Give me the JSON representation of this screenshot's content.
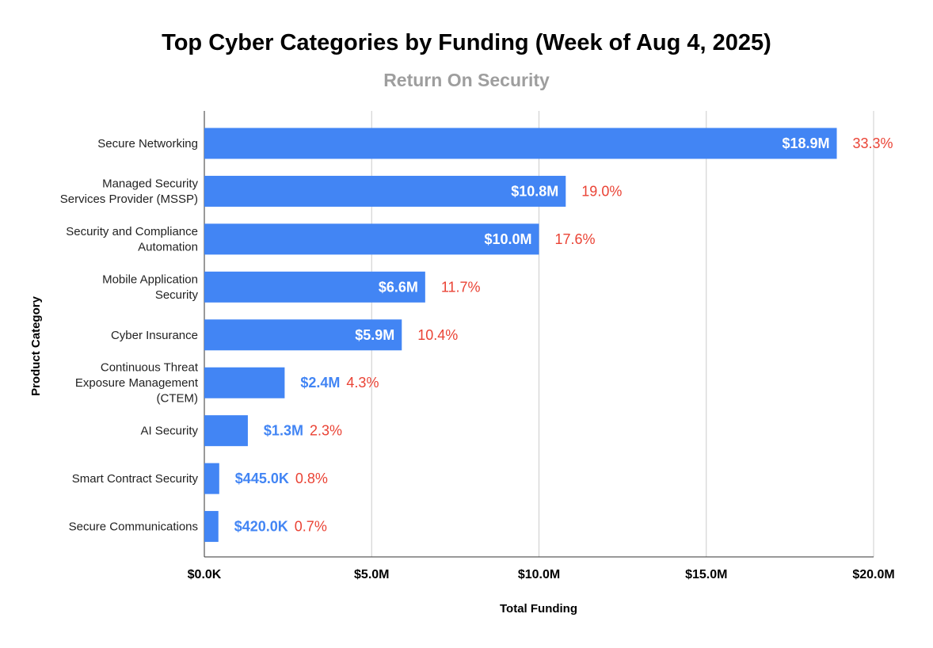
{
  "chart_data": {
    "type": "bar",
    "orientation": "horizontal",
    "title": "Top Cyber Categories by Funding (Week of Aug 4, 2025)",
    "subtitle": "Return On Security",
    "xlabel": "Total Funding",
    "ylabel": "Product Category",
    "xlim": [
      0,
      20000000
    ],
    "x_ticks": [
      {
        "value": 0,
        "label": "$0.0K"
      },
      {
        "value": 5000000,
        "label": "$5.0M"
      },
      {
        "value": 10000000,
        "label": "$10.0M"
      },
      {
        "value": 15000000,
        "label": "$15.0M"
      },
      {
        "value": 20000000,
        "label": "$20.0M"
      }
    ],
    "grid": "vertical",
    "legend": "none",
    "categories": [
      [
        "Secure Networking"
      ],
      [
        "Managed Security",
        "Services Provider (MSSP)"
      ],
      [
        "Security and Compliance",
        "Automation"
      ],
      [
        "Mobile Application",
        "Security"
      ],
      [
        "Cyber Insurance"
      ],
      [
        "Continuous Threat",
        "Exposure Management",
        "(CTEM)"
      ],
      [
        "AI Security"
      ],
      [
        "Smart Contract Security"
      ],
      [
        "Secure Communications"
      ]
    ],
    "values": [
      18900000,
      10800000,
      10000000,
      6600000,
      5900000,
      2400000,
      1300000,
      445000,
      420000
    ],
    "value_labels": [
      "$18.9M",
      "$10.8M",
      "$10.0M",
      "$6.6M",
      "$5.9M",
      "$2.4M",
      "$1.3M",
      "$445.0K",
      "$420.0K"
    ],
    "percent_labels": [
      "33.3%",
      "19.0%",
      "17.6%",
      "11.7%",
      "10.4%",
      "4.3%",
      "2.3%",
      "0.8%",
      "0.7%"
    ],
    "colors": {
      "bar": "#4285f4",
      "percent": "#ea4335",
      "value_inside": "#ffffff",
      "value_outside": "#4285f4",
      "grid": "#cccccc",
      "subtitle": "#9e9e9e"
    }
  }
}
